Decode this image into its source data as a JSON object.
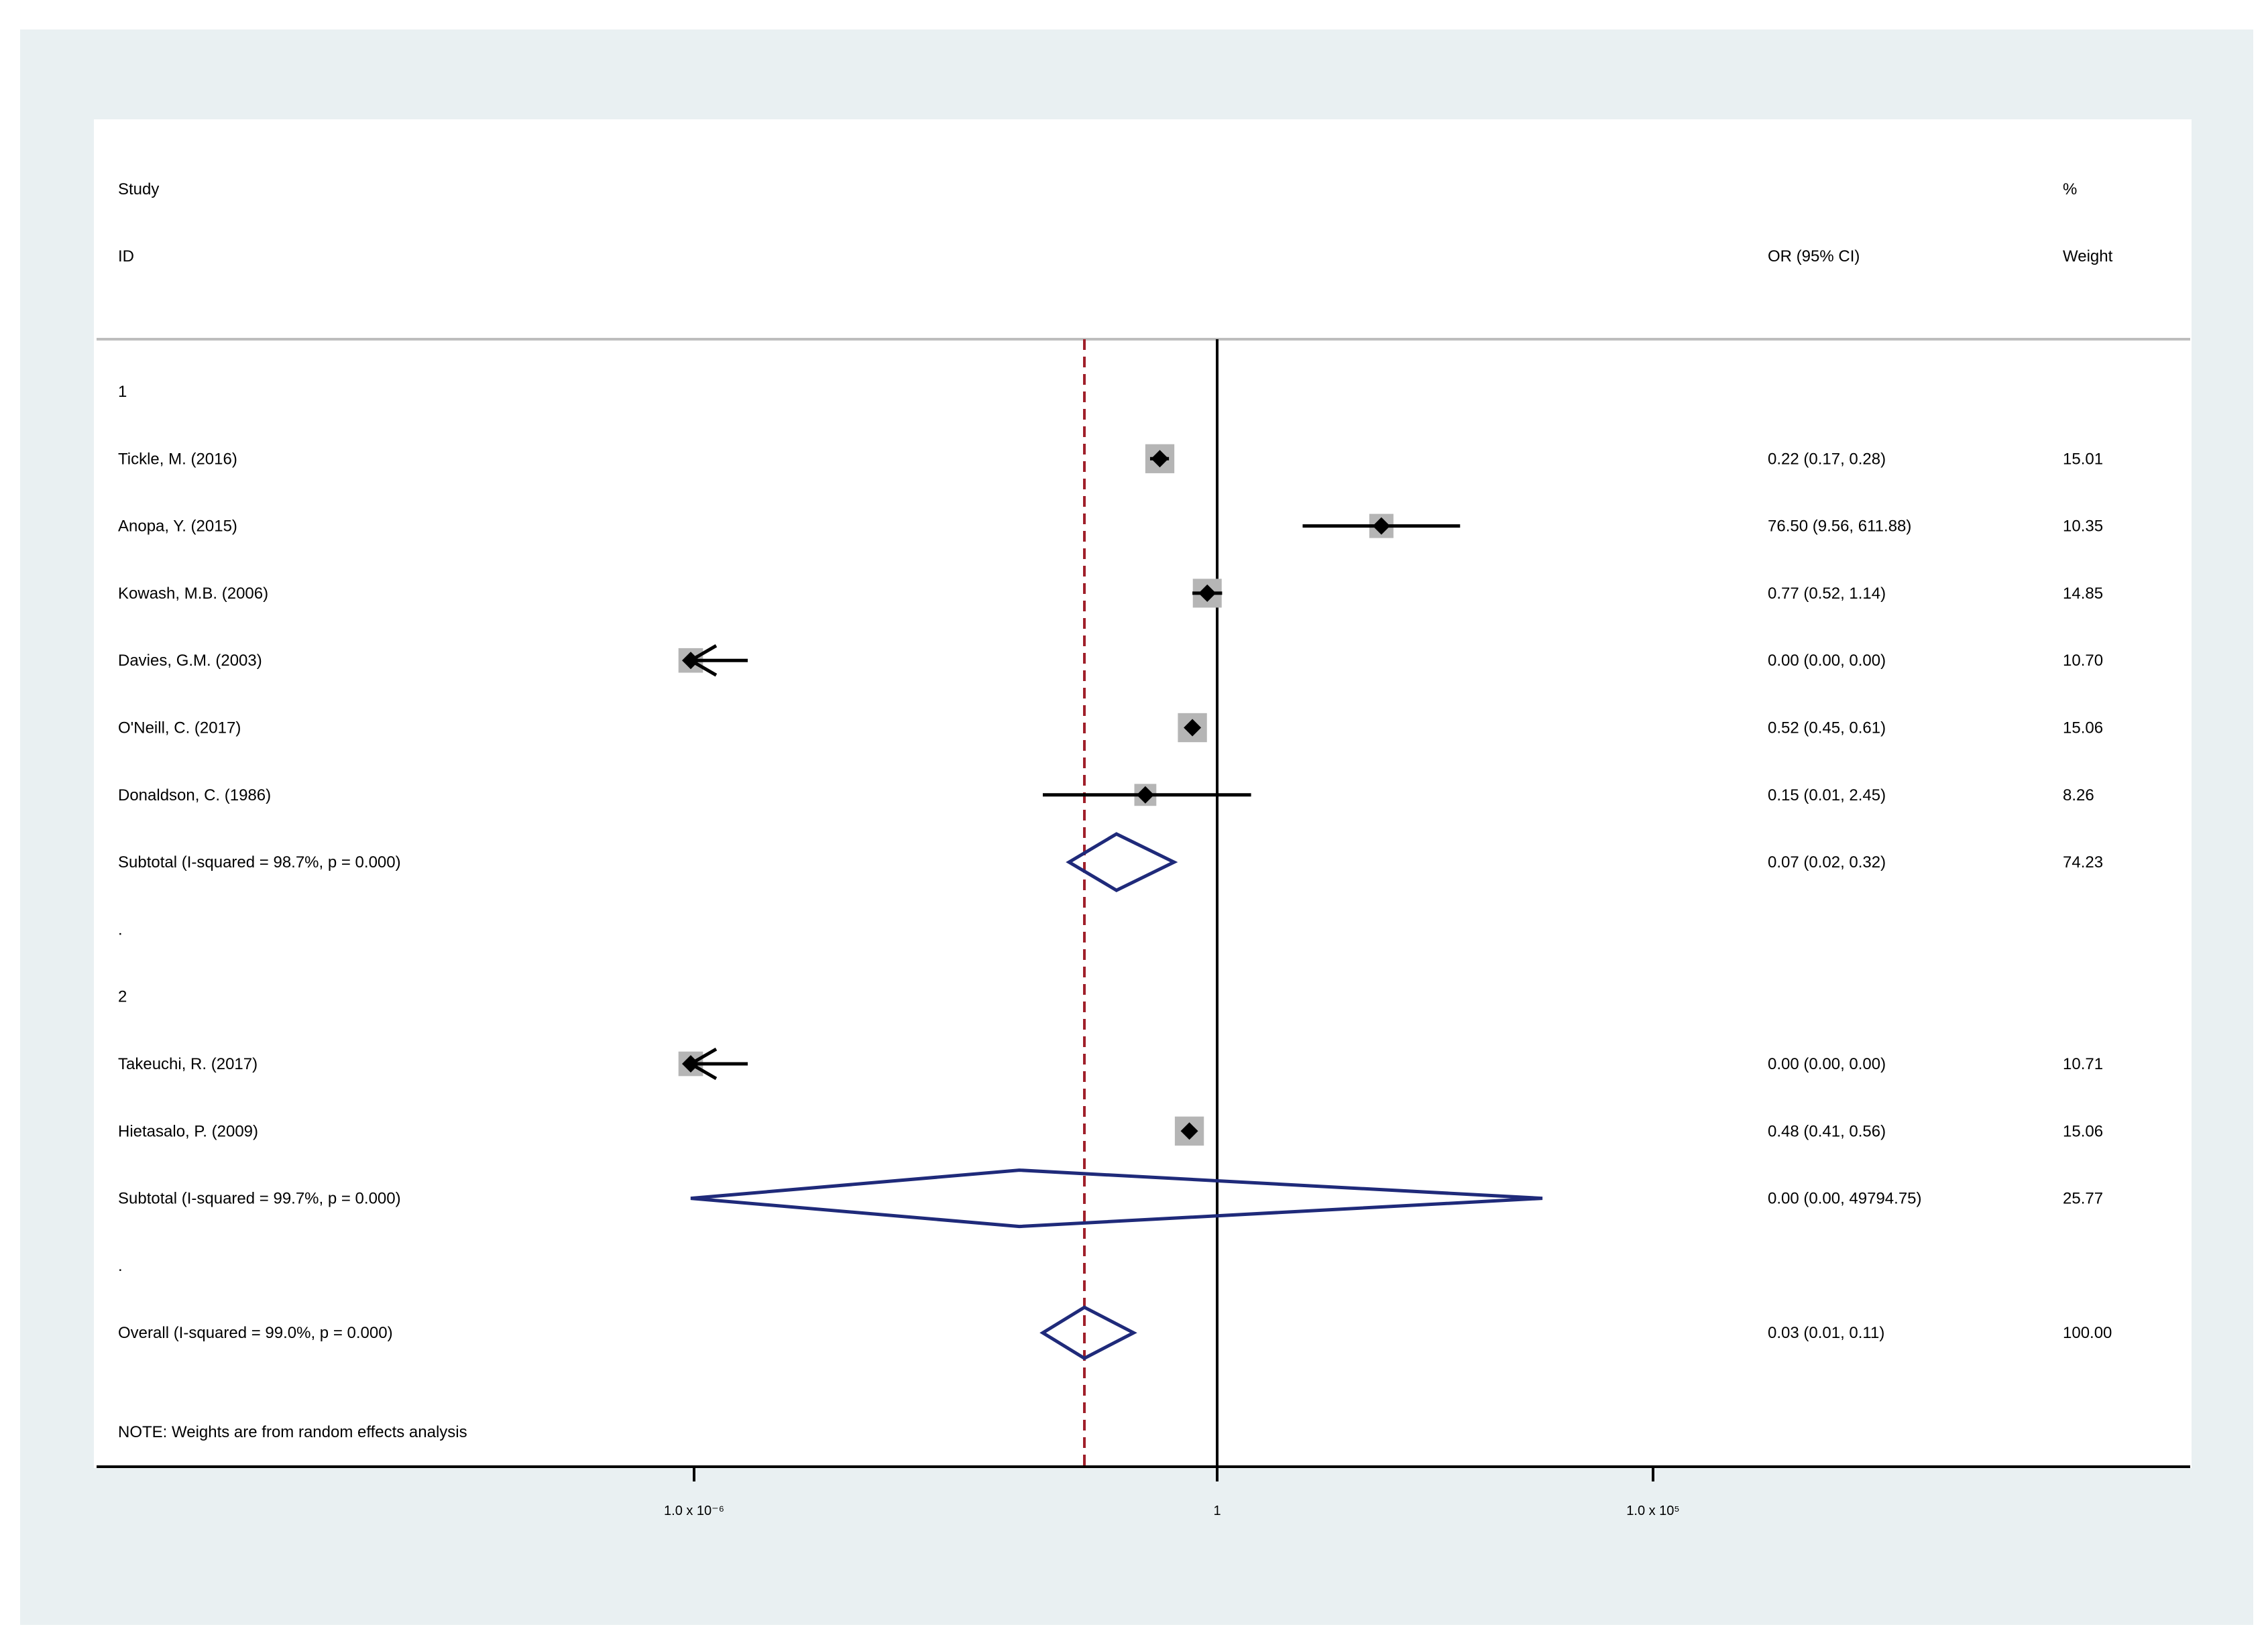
{
  "chart_data": {
    "type": "forest",
    "scale": "log",
    "null_value": 1,
    "overall_estimate": 0.03,
    "headers": {
      "study_1": "Study",
      "study_2": "ID",
      "effect": "OR (95% CI)",
      "weight_1": "%",
      "weight_2": "Weight"
    },
    "x_ticks": [
      {
        "label": "1.0 x 10⁻⁶",
        "value": 1e-06
      },
      {
        "label": "1",
        "value": 1
      },
      {
        "label": "1.0 x 10⁵",
        "value": 100000
      }
    ],
    "rows": [
      {
        "kind": "group",
        "label": "1"
      },
      {
        "kind": "study",
        "label": "Tickle, M. (2016)",
        "or": 0.22,
        "lo": 0.17,
        "hi": 0.28,
        "ci_text": "0.22 (0.17, 0.28)",
        "weight": "15.01"
      },
      {
        "kind": "study",
        "label": "Anopa, Y. (2015)",
        "or": 76.5,
        "lo": 9.56,
        "hi": 611.88,
        "ci_text": "76.50 (9.56, 611.88)",
        "weight": "10.35"
      },
      {
        "kind": "study",
        "label": "Kowash, M.B. (2006)",
        "or": 0.77,
        "lo": 0.52,
        "hi": 1.14,
        "ci_text": "0.77 (0.52, 1.14)",
        "weight": "14.85"
      },
      {
        "kind": "study",
        "label": "Davies, G.M. (2003)",
        "or": 0.0,
        "lo": 0.0,
        "hi": 0.0,
        "ci_text": "0.00 (0.00, 0.00)",
        "weight": "10.70"
      },
      {
        "kind": "study",
        "label": "O'Neill, C. (2017)",
        "or": 0.52,
        "lo": 0.45,
        "hi": 0.61,
        "ci_text": "0.52 (0.45, 0.61)",
        "weight": "15.06"
      },
      {
        "kind": "study",
        "label": "Donaldson, C. (1986)",
        "or": 0.15,
        "lo": 0.01,
        "hi": 2.45,
        "ci_text": "0.15 (0.01, 2.45)",
        "weight": "8.26"
      },
      {
        "kind": "subtotal",
        "label": "Subtotal  (I-squared = 98.7%, p = 0.000)",
        "or": 0.07,
        "lo": 0.02,
        "hi": 0.32,
        "ci_text": "0.07 (0.02, 0.32)",
        "weight": "74.23"
      },
      {
        "kind": "spacer",
        "label": "."
      },
      {
        "kind": "group",
        "label": "2"
      },
      {
        "kind": "study",
        "label": "Takeuchi, R. (2017)",
        "or": 0.0,
        "lo": 0.0,
        "hi": 0.0,
        "ci_text": "0.00 (0.00, 0.00)",
        "weight": "10.71"
      },
      {
        "kind": "study",
        "label": "Hietasalo, P. (2009)",
        "or": 0.48,
        "lo": 0.41,
        "hi": 0.56,
        "ci_text": "0.48 (0.41, 0.56)",
        "weight": "15.06"
      },
      {
        "kind": "subtotal",
        "label": "Subtotal  (I-squared = 99.7%, p = 0.000)",
        "or": 0.0,
        "lo": 0.0,
        "hi": 49794.75,
        "ci_text": "0.00 (0.00, 49794.75)",
        "weight": "25.77"
      },
      {
        "kind": "spacer",
        "label": "."
      },
      {
        "kind": "overall",
        "label": "Overall  (I-squared = 99.0%, p = 0.000)",
        "or": 0.03,
        "lo": 0.01,
        "hi": 0.11,
        "ci_text": "0.03 (0.01, 0.11)",
        "weight": "100.00"
      }
    ],
    "note": "NOTE: Weights are from random effects analysis",
    "colors": {
      "diamond": "#1f2a7a",
      "overall_line": "#a0202a",
      "weight_box": "#b5b5b5",
      "point": "#000000"
    }
  }
}
